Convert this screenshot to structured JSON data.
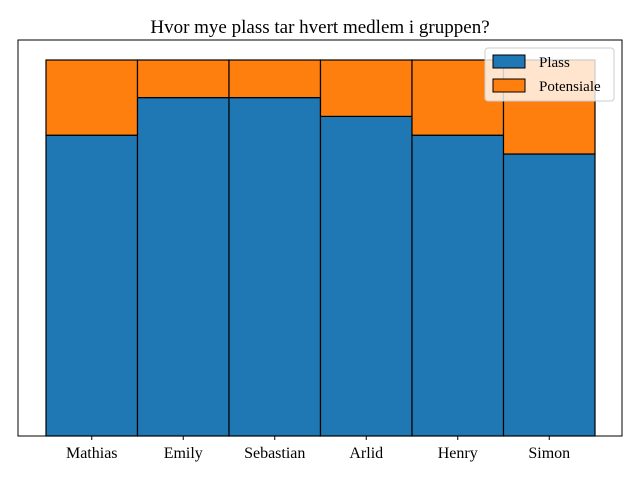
{
  "chart_data": {
    "type": "bar",
    "stacked": true,
    "title": "Hvor mye plass tar hvert medlem i gruppen?",
    "xlabel": "",
    "ylabel": "",
    "categories": [
      "Mathias",
      "Emily",
      "Sebastian",
      "Arlid",
      "Henry",
      "Simon"
    ],
    "series": [
      {
        "name": "Plass",
        "color": "#1f77b4",
        "values": [
          0.8,
          0.9,
          0.9,
          0.85,
          0.8,
          0.75
        ]
      },
      {
        "name": "Potensiale",
        "color": "#ff7f0e",
        "values": [
          0.2,
          0.1,
          0.1,
          0.15,
          0.2,
          0.25
        ]
      }
    ],
    "ylim": [
      0,
      1.0
    ],
    "y_ticks_visible": false,
    "grid": false,
    "legend_position": "top-right"
  }
}
